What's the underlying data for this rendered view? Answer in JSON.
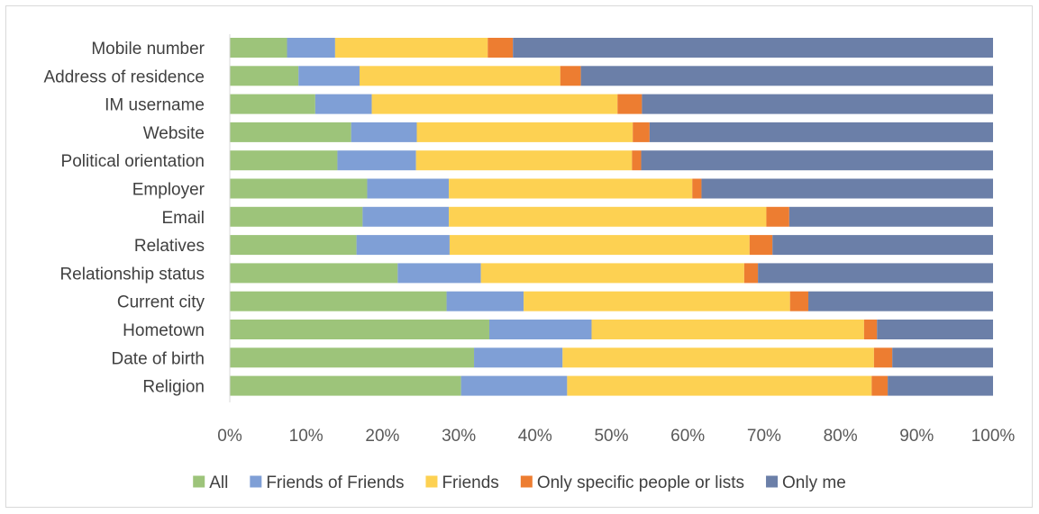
{
  "chart_data": {
    "type": "bar",
    "orientation": "horizontal",
    "stacked": "100%",
    "categories": [
      "Mobile number",
      "Address of residence",
      "IM username",
      "Website",
      "Political orientation",
      "Employer",
      "Email",
      "Relatives",
      "Relationship status",
      "Current city",
      "Hometown",
      "Date of birth",
      "Religion"
    ],
    "series": [
      {
        "name": "All",
        "color": "#9dc47a",
        "values": [
          7.5,
          9,
          11.2,
          15.9,
          14.1,
          18,
          17.4,
          16.6,
          22,
          28.4,
          34,
          32,
          30.3
        ]
      },
      {
        "name": "Friends of Friends",
        "color": "#7f9fd6",
        "values": [
          6.3,
          8,
          7.4,
          8.6,
          10.3,
          10.7,
          11.3,
          12.2,
          10.9,
          10.1,
          13.4,
          11.6,
          13.9
        ]
      },
      {
        "name": "Friends",
        "color": "#fdd152",
        "values": [
          20,
          26.3,
          32.2,
          28.3,
          28.3,
          31.9,
          41.6,
          39.3,
          34.5,
          34.9,
          35.7,
          40.8,
          39.9
        ]
      },
      {
        "name": "Only specific people or lists",
        "color": "#ed7d31",
        "values": [
          3.3,
          2.7,
          3.2,
          2.2,
          1.2,
          1.2,
          3,
          3,
          1.8,
          2.4,
          1.7,
          2.4,
          2.1
        ]
      },
      {
        "name": "Only me",
        "color": "#6b7fa8",
        "values": [
          62.9,
          54,
          46,
          45,
          46.1,
          38.2,
          26.7,
          28.9,
          30.8,
          24.2,
          15.2,
          13.2,
          13.8
        ]
      }
    ],
    "x_ticks": [
      "0%",
      "10%",
      "20%",
      "30%",
      "40%",
      "50%",
      "60%",
      "70%",
      "80%",
      "90%",
      "100%"
    ],
    "xlim": [
      0,
      100
    ],
    "legend_position": "bottom",
    "grid": false
  }
}
